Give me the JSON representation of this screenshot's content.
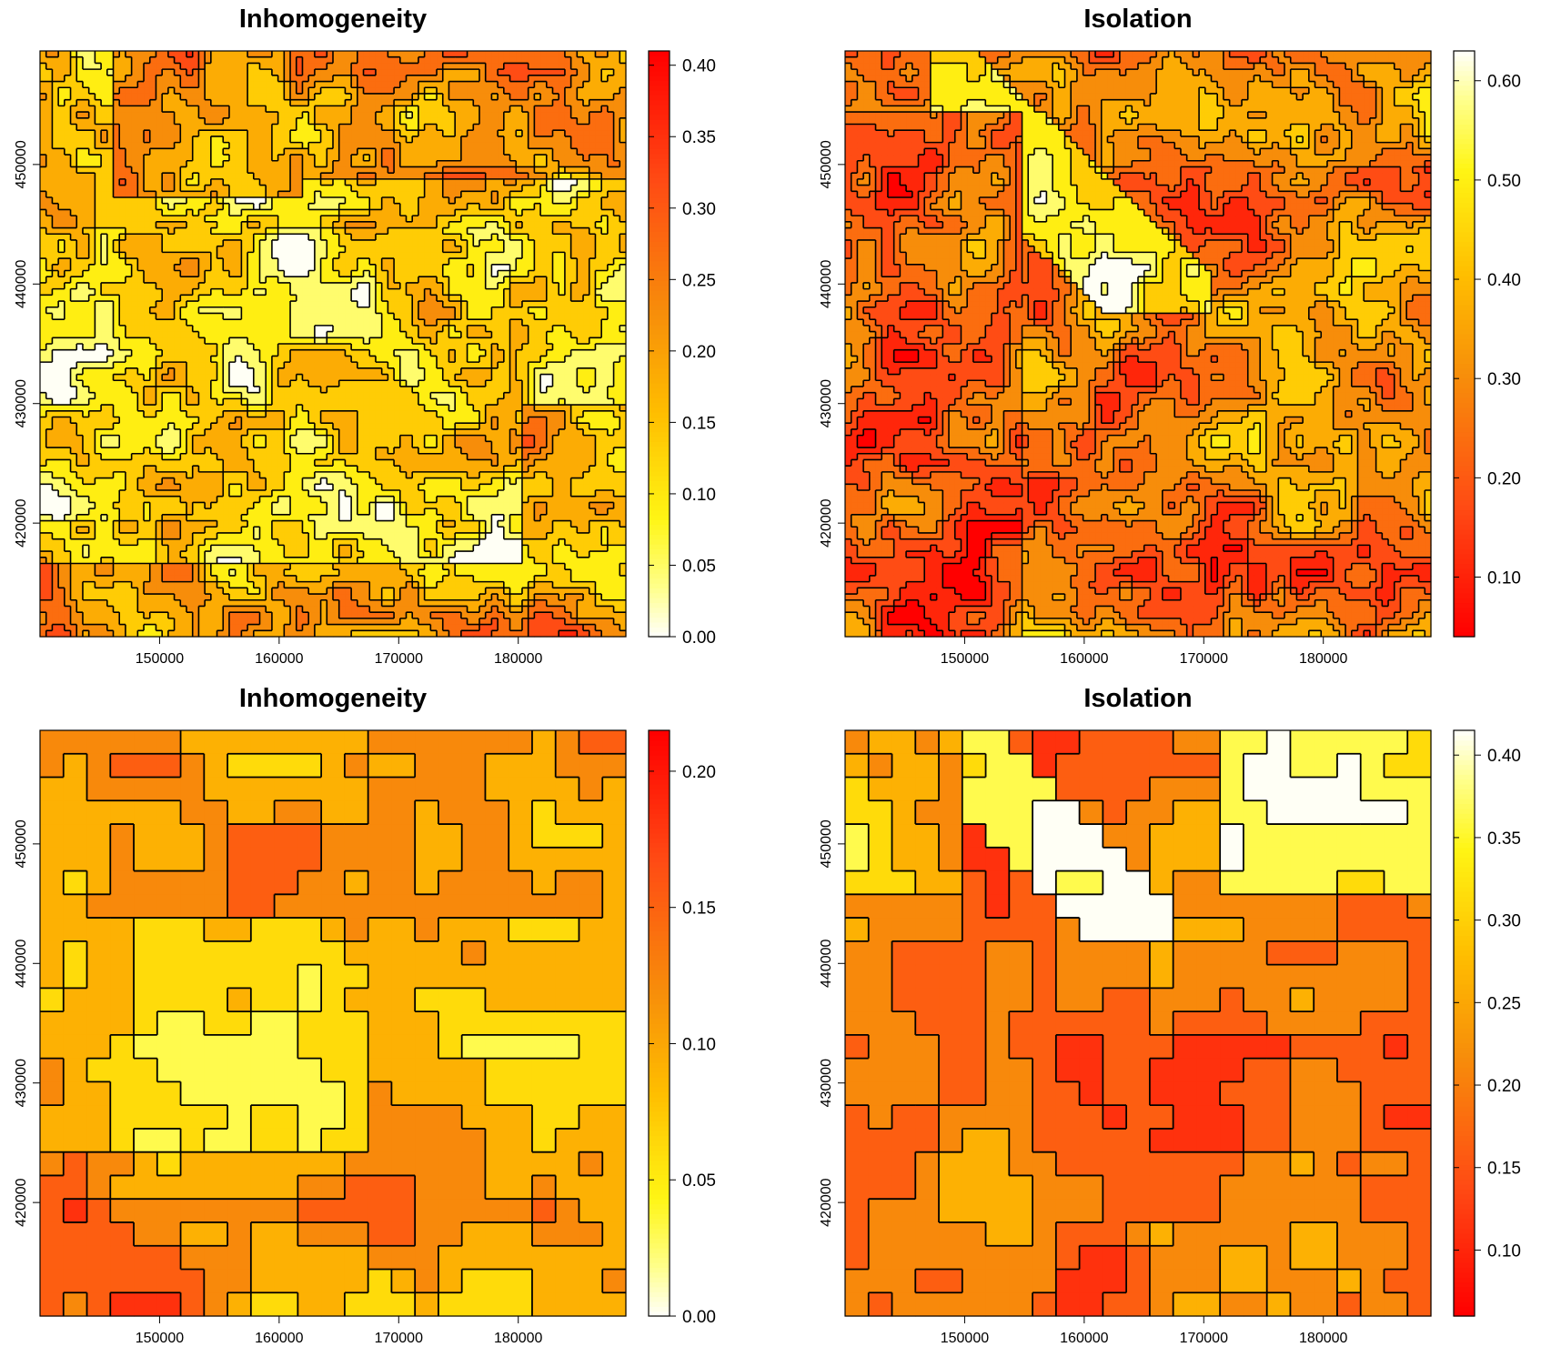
{
  "chart_data": [
    {
      "type": "heatmap",
      "title": "Inhomogeneity",
      "xlabel": "",
      "ylabel": "",
      "resolution": "fine",
      "xlim": [
        140000,
        189000
      ],
      "ylim": [
        410500,
        459500
      ],
      "x_ticks": [
        150000,
        160000,
        170000,
        180000
      ],
      "y_ticks": [
        420000,
        430000,
        440000,
        450000
      ],
      "x_tick_labels": [
        "150000",
        "160000",
        "170000",
        "180000"
      ],
      "y_tick_labels": [
        "420000",
        "430000",
        "440000",
        "450000"
      ],
      "colorbar": {
        "min": 0,
        "max": 0.41,
        "ticks": [
          0.0,
          0.05,
          0.1,
          0.15,
          0.2,
          0.25,
          0.3,
          0.35,
          0.4
        ],
        "tick_labels": [
          "0.00",
          "0.05",
          "0.10",
          "0.15",
          "0.20",
          "0.25",
          "0.30",
          "0.35",
          "0.40"
        ],
        "palette": "heat-reversed"
      }
    },
    {
      "type": "heatmap",
      "title": "Isolation",
      "xlabel": "",
      "ylabel": "",
      "resolution": "fine",
      "xlim": [
        140000,
        189000
      ],
      "ylim": [
        410500,
        459500
      ],
      "x_ticks": [
        150000,
        160000,
        170000,
        180000
      ],
      "y_ticks": [
        420000,
        430000,
        440000,
        450000
      ],
      "x_tick_labels": [
        "150000",
        "160000",
        "170000",
        "180000"
      ],
      "y_tick_labels": [
        "420000",
        "430000",
        "440000",
        "450000"
      ],
      "colorbar": {
        "min": 0.04,
        "max": 0.63,
        "ticks": [
          0.1,
          0.2,
          0.3,
          0.4,
          0.5,
          0.6
        ],
        "tick_labels": [
          "0.10",
          "0.20",
          "0.30",
          "0.40",
          "0.50",
          "0.60"
        ],
        "palette": "heat"
      }
    },
    {
      "type": "heatmap",
      "title": "Inhomogeneity",
      "xlabel": "",
      "ylabel": "",
      "resolution": "coarse",
      "xlim": [
        140000,
        189000
      ],
      "ylim": [
        410500,
        459500
      ],
      "x_ticks": [
        150000,
        160000,
        170000,
        180000
      ],
      "y_ticks": [
        420000,
        430000,
        440000,
        450000
      ],
      "x_tick_labels": [
        "150000",
        "160000",
        "170000",
        "180000"
      ],
      "y_tick_labels": [
        "420000",
        "430000",
        "440000",
        "450000"
      ],
      "colorbar": {
        "min": 0,
        "max": 0.215,
        "ticks": [
          0.0,
          0.05,
          0.1,
          0.15,
          0.2
        ],
        "tick_labels": [
          "0.00",
          "0.05",
          "0.10",
          "0.15",
          "0.20"
        ],
        "palette": "heat-reversed"
      }
    },
    {
      "type": "heatmap",
      "title": "Isolation",
      "xlabel": "",
      "ylabel": "",
      "resolution": "coarse",
      "xlim": [
        140000,
        189000
      ],
      "ylim": [
        410500,
        459500
      ],
      "x_ticks": [
        150000,
        160000,
        170000,
        180000
      ],
      "y_ticks": [
        420000,
        430000,
        440000,
        450000
      ],
      "x_tick_labels": [
        "150000",
        "160000",
        "170000",
        "180000"
      ],
      "y_tick_labels": [
        "420000",
        "430000",
        "440000",
        "450000"
      ],
      "colorbar": {
        "min": 0.06,
        "max": 0.415,
        "ticks": [
          0.1,
          0.15,
          0.2,
          0.25,
          0.3,
          0.35,
          0.4
        ],
        "tick_labels": [
          "0.10",
          "0.15",
          "0.20",
          "0.25",
          "0.30",
          "0.35",
          "0.40"
        ],
        "palette": "heat"
      }
    }
  ]
}
